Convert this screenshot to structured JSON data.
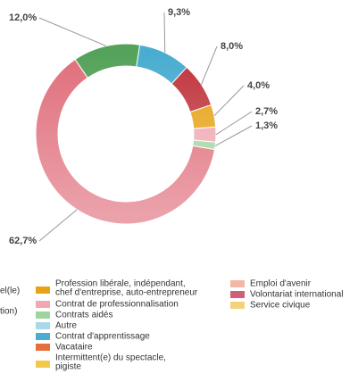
{
  "chart_data": {
    "type": "pie",
    "donut": true,
    "values": [
      62.7,
      12.0,
      9.3,
      8.0,
      4.0,
      2.7,
      1.3
    ],
    "value_labels": [
      "62,7%",
      "12,0%",
      "9,3%",
      "8,0%",
      "4,0%",
      "2,7%",
      "1,3%"
    ],
    "colors": [
      "#e06f7c",
      "#55a35a",
      "#4aadd0",
      "#c0363e",
      "#e7a318",
      "#f0a8b1",
      "#9fd49f"
    ],
    "legend": [
      {
        "name_lines": [
          "Profession libérale, indépendant,",
          "chef d'entreprise, auto-entrepreneur"
        ],
        "color": "#e7a318"
      },
      {
        "name_lines": [
          "Contrat de professionnalisation"
        ],
        "color": "#f0a8b1"
      },
      {
        "name_lines": [
          "Contrats aidés"
        ],
        "color": "#9fd49f"
      },
      {
        "name_lines": [
          "Autre"
        ],
        "color": "#a8d8ea"
      },
      {
        "name_lines": [
          "Contrat d'apprentissage"
        ],
        "color": "#4aadd0"
      },
      {
        "name_lines": [
          "Vacataire"
        ],
        "color": "#e5703a"
      },
      {
        "name_lines": [
          "Intermittent(e) du spectacle,",
          "pigiste"
        ],
        "color": "#f3c94a"
      },
      {
        "name_lines": [
          "Emploi d'avenir"
        ],
        "color": "#f2b7a5"
      },
      {
        "name_lines": [
          "Volontariat international"
        ],
        "color": "#d0607a"
      },
      {
        "name_lines": [
          "Service civique"
        ],
        "color": "#f3d27a"
      }
    ],
    "cut_legend_texts": [
      "el(le)",
      "tion)"
    ]
  }
}
